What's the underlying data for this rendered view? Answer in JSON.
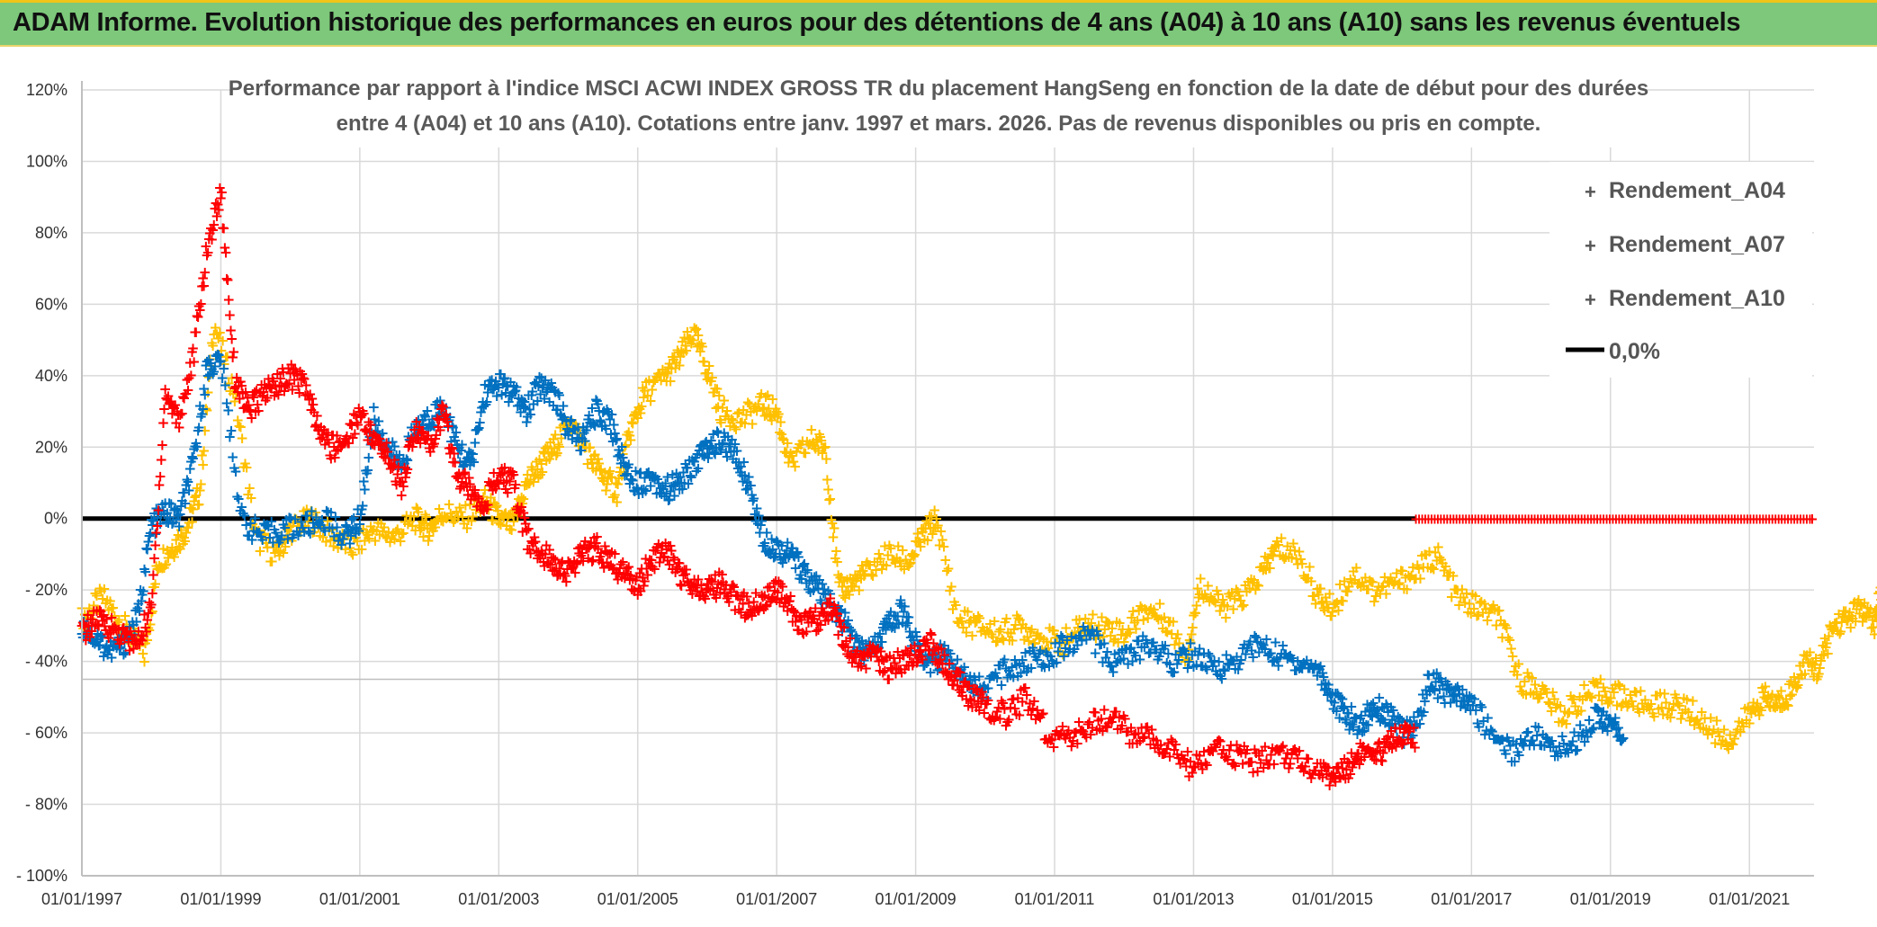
{
  "banner": {
    "title": "ADAM Informe. Evolution historique des performances en euros pour des détentions de 4 ans (A04) à 10 ans (A10) sans les revenus éventuels",
    "background": "#7dc87a"
  },
  "chart_data": {
    "type": "scatter",
    "title_line1": "Performance par rapport à l'indice MSCI ACWI INDEX GROSS TR  du placement HangSeng en fonction de la date de début pour des durées",
    "title_line2": "entre 4 (A04) et 10 ans (A10). Cotations entre janv. 1997 et mars. 2026. Pas de revenus disponibles ou pris en compte.",
    "x_type": "year",
    "xlim": [
      1997.0,
      2023.0
    ],
    "ylim": [
      -100,
      120
    ],
    "y_ticks": [
      {
        "value": 120,
        "label": "120%"
      },
      {
        "value": 100,
        "label": "100%"
      },
      {
        "value": 80,
        "label": "80%"
      },
      {
        "value": 60,
        "label": "60%"
      },
      {
        "value": 40,
        "label": "40%"
      },
      {
        "value": 20,
        "label": "20%"
      },
      {
        "value": 0,
        "label": "0%"
      },
      {
        "value": -20,
        "label": "- 20%"
      },
      {
        "value": -40,
        "label": "- 40%"
      },
      {
        "value": -60,
        "label": "- 60%"
      },
      {
        "value": -80,
        "label": "- 80%"
      },
      {
        "value": -100,
        "label": "- 100%"
      }
    ],
    "x_ticks": [
      {
        "value": 1997,
        "label": "01/01/1997"
      },
      {
        "value": 1999,
        "label": "01/01/1999"
      },
      {
        "value": 2001,
        "label": "01/01/2001"
      },
      {
        "value": 2003,
        "label": "01/01/2003"
      },
      {
        "value": 2005,
        "label": "01/01/2005"
      },
      {
        "value": 2007,
        "label": "01/01/2007"
      },
      {
        "value": 2009,
        "label": "01/01/2009"
      },
      {
        "value": 2011,
        "label": "01/01/2011"
      },
      {
        "value": 2013,
        "label": "01/01/2013"
      },
      {
        "value": 2015,
        "label": "01/01/2015"
      },
      {
        "value": 2017,
        "label": "01/01/2017"
      },
      {
        "value": 2019,
        "label": "01/01/2019"
      },
      {
        "value": 2021,
        "label": "01/01/2021"
      }
    ],
    "series": [
      {
        "name": "Rendement_A04",
        "color": "#ffc000",
        "x": [
          1997.0,
          1997.3,
          1997.6,
          1997.9,
          1998.1,
          1998.3,
          1998.5,
          1998.7,
          1998.9,
          1999.2,
          1999.5,
          1999.8,
          2000.0,
          2000.3,
          2000.6,
          2000.9,
          2001.2,
          2001.5,
          2001.8,
          2002.0,
          2002.2,
          2002.5,
          2002.8,
          2003.0,
          2003.2,
          2003.4,
          2003.6,
          2003.8,
          2004.0,
          2004.3,
          2004.5,
          2004.7,
          2004.9,
          2005.1,
          2005.4,
          2005.6,
          2005.8,
          2006.0,
          2006.2,
          2006.5,
          2006.8,
          2007.0,
          2007.2,
          2007.5,
          2007.7,
          2007.9,
          2008.1,
          2008.3,
          2008.6,
          2008.9,
          2009.1,
          2009.3,
          2009.6,
          2009.9,
          2010.2,
          2010.5,
          2010.8,
          2011.1,
          2011.4,
          2011.7,
          2012.0,
          2012.3,
          2012.6,
          2012.9,
          2013.1,
          2013.4,
          2013.7,
          2014.0,
          2014.2,
          2014.5,
          2014.8,
          2015.0,
          2015.3,
          2015.6,
          2015.9,
          2016.2,
          2016.5,
          2016.8,
          2017.1,
          2017.4,
          2017.7,
          2018.0,
          2018.3,
          2018.6,
          2018.9,
          2019.2,
          2019.5,
          2019.8,
          2020.1,
          2020.4,
          2020.7,
          2021.0,
          2021.2,
          2021.4,
          2021.6,
          2021.8,
          2022.0,
          2022.2,
          2022.4,
          2022.6,
          2022.8,
          2022.9
        ],
        "y": [
          -28,
          -22,
          -30,
          -38,
          -12,
          -8,
          -3,
          8,
          55,
          35,
          -5,
          -10,
          -3,
          0,
          -5,
          -8,
          -3,
          -5,
          0,
          -3,
          2,
          0,
          5,
          0,
          -2,
          10,
          15,
          20,
          28,
          18,
          12,
          8,
          25,
          35,
          40,
          45,
          52,
          42,
          30,
          28,
          32,
          30,
          15,
          22,
          20,
          -20,
          -18,
          -15,
          -10,
          -12,
          -5,
          0,
          -28,
          -30,
          -32,
          -30,
          -33,
          -35,
          -30,
          -30,
          -32,
          -25,
          -28,
          -38,
          -18,
          -25,
          -22,
          -15,
          -8,
          -10,
          -22,
          -25,
          -15,
          -20,
          -18,
          -15,
          -10,
          -22,
          -25,
          -28,
          -45,
          -48,
          -55,
          -50,
          -48,
          -50,
          -52,
          -52,
          -53,
          -58,
          -62,
          -55,
          -50,
          -52,
          -48,
          -40,
          -42,
          -30,
          -28,
          -25,
          -30,
          -20
        ]
      },
      {
        "name": "Rendement_A07",
        "color": "#0070c0",
        "x": [
          1997.0,
          1997.2,
          1997.4,
          1997.6,
          1997.8,
          1998.0,
          1998.2,
          1998.4,
          1998.6,
          1998.8,
          1999.0,
          1999.3,
          1999.6,
          1999.9,
          2000.2,
          2000.5,
          2000.8,
          2001.0,
          2001.2,
          2001.4,
          2001.6,
          2001.8,
          2002.0,
          2002.2,
          2002.4,
          2002.6,
          2002.8,
          2003.0,
          2003.2,
          2003.4,
          2003.6,
          2003.8,
          2004.0,
          2004.2,
          2004.4,
          2004.6,
          2004.8,
          2005.0,
          2005.2,
          2005.4,
          2005.6,
          2005.8,
          2006.0,
          2006.2,
          2006.4,
          2006.6,
          2006.8,
          2007.0,
          2007.2,
          2007.4,
          2007.6,
          2007.8,
          2008.0,
          2008.2,
          2008.4,
          2008.6,
          2008.8,
          2009.0,
          2009.2,
          2009.4,
          2009.6,
          2009.8,
          2010.0,
          2010.3,
          2010.6,
          2010.9,
          2011.2,
          2011.5,
          2011.8,
          2012.1,
          2012.4,
          2012.7,
          2013.0,
          2013.3,
          2013.6,
          2013.9,
          2014.2,
          2014.5,
          2014.8,
          2015.0,
          2015.2,
          2015.4,
          2015.6,
          2015.8,
          2016.0,
          2016.2,
          2016.4,
          2016.6,
          2016.8,
          2017.0,
          2017.3,
          2017.6,
          2017.9,
          2018.2,
          2018.5,
          2018.8,
          2019.0,
          2019.2
        ],
        "y": [
          -30,
          -33,
          -37,
          -35,
          -28,
          -2,
          2,
          0,
          15,
          42,
          45,
          0,
          -5,
          -3,
          -2,
          0,
          -5,
          0,
          28,
          20,
          15,
          25,
          28,
          32,
          20,
          15,
          35,
          38,
          35,
          30,
          38,
          35,
          25,
          22,
          30,
          28,
          15,
          10,
          12,
          8,
          10,
          15,
          20,
          22,
          18,
          10,
          -5,
          -8,
          -10,
          -15,
          -20,
          -25,
          -30,
          -38,
          -35,
          -30,
          -25,
          -35,
          -40,
          -38,
          -42,
          -45,
          -48,
          -42,
          -40,
          -38,
          -35,
          -32,
          -40,
          -38,
          -35,
          -40,
          -38,
          -42,
          -40,
          -35,
          -38,
          -40,
          -42,
          -50,
          -55,
          -58,
          -52,
          -55,
          -60,
          -58,
          -45,
          -48,
          -50,
          -52,
          -60,
          -65,
          -60,
          -65,
          -62,
          -55,
          -58,
          -60
        ]
      },
      {
        "name": "Rendement_A10",
        "color": "#ff0000",
        "x": [
          1997.0,
          1997.2,
          1997.4,
          1997.6,
          1997.8,
          1998.0,
          1998.2,
          1998.4,
          1998.6,
          1998.8,
          1999.0,
          1999.2,
          1999.4,
          1999.6,
          1999.8,
          2000.0,
          2000.2,
          2000.4,
          2000.6,
          2000.8,
          2001.0,
          2001.2,
          2001.4,
          2001.6,
          2001.8,
          2002.0,
          2002.2,
          2002.4,
          2002.6,
          2002.8,
          2003.0,
          2003.2,
          2003.4,
          2003.6,
          2003.8,
          2004.0,
          2004.2,
          2004.4,
          2004.6,
          2004.8,
          2005.0,
          2005.2,
          2005.4,
          2005.6,
          2005.8,
          2006.0,
          2006.2,
          2006.4,
          2006.6,
          2006.8,
          2007.0,
          2007.2,
          2007.4,
          2007.6,
          2007.8,
          2008.0,
          2008.2,
          2008.4,
          2008.6,
          2008.8,
          2009.0,
          2009.2,
          2009.4,
          2009.6,
          2009.8,
          2010.0,
          2010.3,
          2010.6,
          2010.9,
          2011.2,
          2011.5,
          2011.8,
          2012.1,
          2012.4,
          2012.7,
          2013.0,
          2013.3,
          2013.6,
          2013.9,
          2014.2,
          2014.5,
          2014.8,
          2015.0,
          2015.2,
          2015.4,
          2015.6,
          2015.8,
          2016.0,
          2016.2
        ],
        "y": [
          -32,
          -28,
          -30,
          -33,
          -35,
          -25,
          35,
          28,
          45,
          75,
          92,
          40,
          30,
          35,
          38,
          40,
          38,
          25,
          20,
          22,
          30,
          22,
          18,
          10,
          25,
          20,
          30,
          12,
          8,
          5,
          12,
          10,
          -5,
          -10,
          -12,
          -15,
          -10,
          -8,
          -12,
          -15,
          -18,
          -12,
          -8,
          -15,
          -18,
          -20,
          -18,
          -22,
          -25,
          -22,
          -20,
          -25,
          -30,
          -28,
          -25,
          -35,
          -40,
          -38,
          -42,
          -40,
          -38,
          -35,
          -40,
          -45,
          -50,
          -52,
          -55,
          -50,
          -60,
          -62,
          -58,
          -55,
          -60,
          -62,
          -65,
          -70,
          -65,
          -66,
          -68,
          -65,
          -68,
          -70,
          -72,
          -70,
          -65,
          -68,
          -62,
          -60,
          -62
        ]
      }
    ],
    "zero_line": {
      "label": "0,0%",
      "value": 0,
      "color": "#000000"
    },
    "zero_segment_red": {
      "x_start": 2016.2,
      "x_end": 2023.0,
      "value": 0
    },
    "legend_position": "top-right"
  }
}
